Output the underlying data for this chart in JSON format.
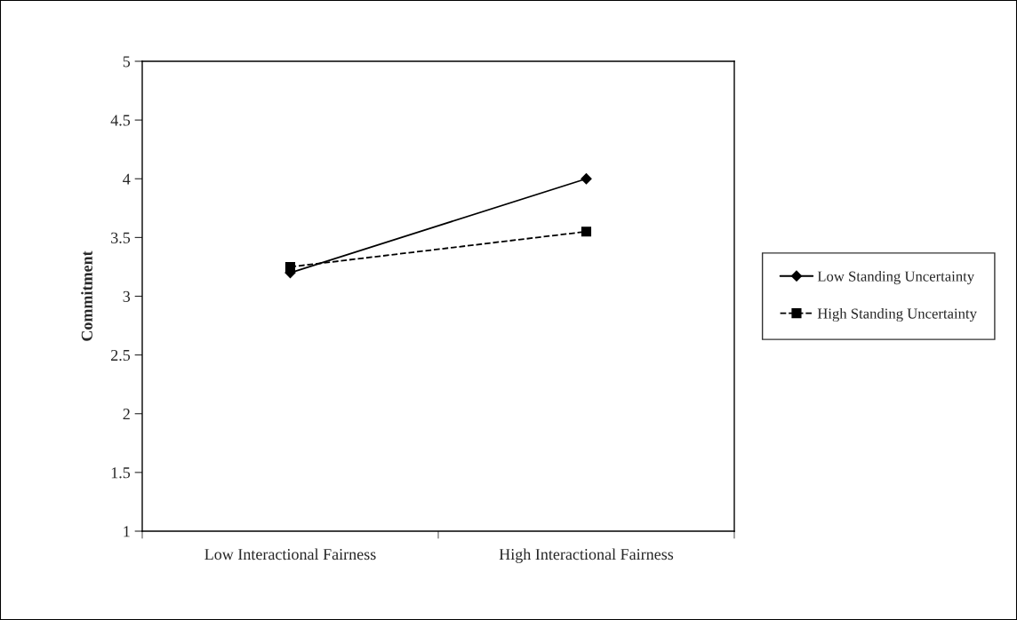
{
  "chart_data": {
    "type": "line",
    "ylabel": "Commitment",
    "categories": [
      "Low Interactional Fairness",
      "High Interactional Fairness"
    ],
    "series": [
      {
        "name": "Low Standing Uncertainty",
        "color": "#000000",
        "values": [
          3.2,
          4.0
        ],
        "marker": "diamond",
        "line_style": "solid"
      },
      {
        "name": "High Standing Uncertainty",
        "color": "#000000",
        "values": [
          3.25,
          3.55
        ],
        "marker": "square",
        "line_style": "dashed"
      }
    ],
    "ylim": [
      1,
      5
    ],
    "yticks": [
      1,
      1.5,
      2,
      2.5,
      3,
      3.5,
      4,
      4.5,
      5
    ],
    "grid": false,
    "legend": "right"
  }
}
